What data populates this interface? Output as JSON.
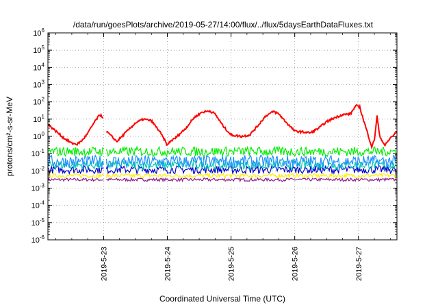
{
  "chart_data": {
    "type": "line",
    "title": "/data/run/goesPlots/archive/2019-05-27/14:00/flux/../flux/5daysEarthDataFluxes.txt",
    "xlabel": "Coordinated Universal Time (UTC)",
    "ylabel": "protons/cm²-s-sr-MeV",
    "y_scale": "log",
    "ylim": [
      1e-06,
      1000000.0
    ],
    "x_range_days": [
      "2019-05-22 03:00",
      "2019-05-27 14:30"
    ],
    "grid": true,
    "x_ticks": [
      "2019-5-23",
      "2019-5-24",
      "2019-5-25",
      "2019-5-26",
      "2019-5-27"
    ],
    "y_ticks": [
      {
        "base": "10",
        "exp": "6"
      },
      {
        "base": "10",
        "exp": "5"
      },
      {
        "base": "10",
        "exp": "4"
      },
      {
        "base": "10",
        "exp": "3"
      },
      {
        "base": "10",
        "exp": "2"
      },
      {
        "base": "10",
        "exp": "1"
      },
      {
        "base": "10",
        "exp": "0"
      },
      {
        "base": "10",
        "exp": "-1"
      },
      {
        "base": "10",
        "exp": "-2"
      },
      {
        "base": "10",
        "exp": "-3"
      },
      {
        "base": "10",
        "exp": "-4"
      },
      {
        "base": "10",
        "exp": "-5"
      },
      {
        "base": "10",
        "exp": "-6"
      }
    ],
    "data_gap": [
      "2019-05-23 00:00",
      "2019-05-23 01:00"
    ],
    "series": [
      {
        "color": "#ff0000",
        "width": 2,
        "points": [
          [
            "2019-05-22 03:00",
            5
          ],
          [
            "2019-05-22 06:00",
            2
          ],
          [
            "2019-05-22 09:00",
            0.8
          ],
          [
            "2019-05-22 12:00",
            0.4
          ],
          [
            "2019-05-22 14:00",
            0.35
          ],
          [
            "2019-05-22 16:00",
            0.6
          ],
          [
            "2019-05-22 18:00",
            1.5
          ],
          [
            "2019-05-22 20:00",
            5
          ],
          [
            "2019-05-22 22:00",
            14
          ],
          [
            "2019-05-22 23:00",
            18
          ],
          [
            "2019-05-23 00:00",
            10
          ],
          [
            "2019-05-23 01:00",
            2
          ],
          [
            "2019-05-23 03:00",
            1
          ],
          [
            "2019-05-23 05:00",
            0.5
          ],
          [
            "2019-05-23 08:00",
            1.5
          ],
          [
            "2019-05-23 12:00",
            6
          ],
          [
            "2019-05-23 15:00",
            10
          ],
          [
            "2019-05-23 18:00",
            8
          ],
          [
            "2019-05-23 21:00",
            2
          ],
          [
            "2019-05-23 23:00",
            0.6
          ],
          [
            "2019-05-24 00:00",
            0.3
          ],
          [
            "2019-05-24 01:00",
            0.5
          ],
          [
            "2019-05-24 03:00",
            0.8
          ],
          [
            "2019-05-24 07:00",
            3
          ],
          [
            "2019-05-24 10:00",
            12
          ],
          [
            "2019-05-24 13:00",
            25
          ],
          [
            "2019-05-24 16:00",
            30
          ],
          [
            "2019-05-24 18:00",
            20
          ],
          [
            "2019-05-24 21:00",
            4
          ],
          [
            "2019-05-25 00:00",
            1.2
          ],
          [
            "2019-05-25 04:00",
            1
          ],
          [
            "2019-05-25 07:00",
            1.2
          ],
          [
            "2019-05-25 10:00",
            4
          ],
          [
            "2019-05-25 13:00",
            15
          ],
          [
            "2019-05-25 16:00",
            28
          ],
          [
            "2019-05-25 18:00",
            20
          ],
          [
            "2019-05-25 21:00",
            6
          ],
          [
            "2019-05-26 00:00",
            2
          ],
          [
            "2019-05-26 03:00",
            1.8
          ],
          [
            "2019-05-26 06:00",
            1.6
          ],
          [
            "2019-05-26 09:00",
            3
          ],
          [
            "2019-05-26 12:00",
            7
          ],
          [
            "2019-05-26 15:00",
            12
          ],
          [
            "2019-05-26 18:00",
            18
          ],
          [
            "2019-05-26 21:00",
            20
          ],
          [
            "2019-05-26 23:00",
            60
          ],
          [
            "2019-05-27 00:30",
            50
          ],
          [
            "2019-05-27 02:00",
            8
          ],
          [
            "2019-05-27 04:00",
            0.8
          ],
          [
            "2019-05-27 05:00",
            0.25
          ],
          [
            "2019-05-27 06:00",
            0.6
          ],
          [
            "2019-05-27 07:00",
            15
          ],
          [
            "2019-05-27 08:00",
            1
          ],
          [
            "2019-05-27 10:00",
            0.3
          ],
          [
            "2019-05-27 12:00",
            0.8
          ],
          [
            "2019-05-27 14:30",
            1.8
          ]
        ]
      },
      {
        "color": "#00ee00",
        "width": 1.2,
        "band": [
          0.07,
          0.25
        ]
      },
      {
        "color": "#1e90ff",
        "width": 1.2,
        "band": [
          0.015,
          0.08
        ]
      },
      {
        "color": "#00ccaa",
        "width": 1.2,
        "band": [
          0.012,
          0.04
        ]
      },
      {
        "color": "#0000cc",
        "width": 1.2,
        "band": [
          0.007,
          0.02
        ]
      },
      {
        "color": "#ffee00",
        "width": 1.2,
        "band": [
          0.004,
          0.007
        ]
      },
      {
        "color": "#8b1a8b",
        "width": 1.2,
        "band": [
          0.0025,
          0.0038
        ]
      }
    ]
  }
}
